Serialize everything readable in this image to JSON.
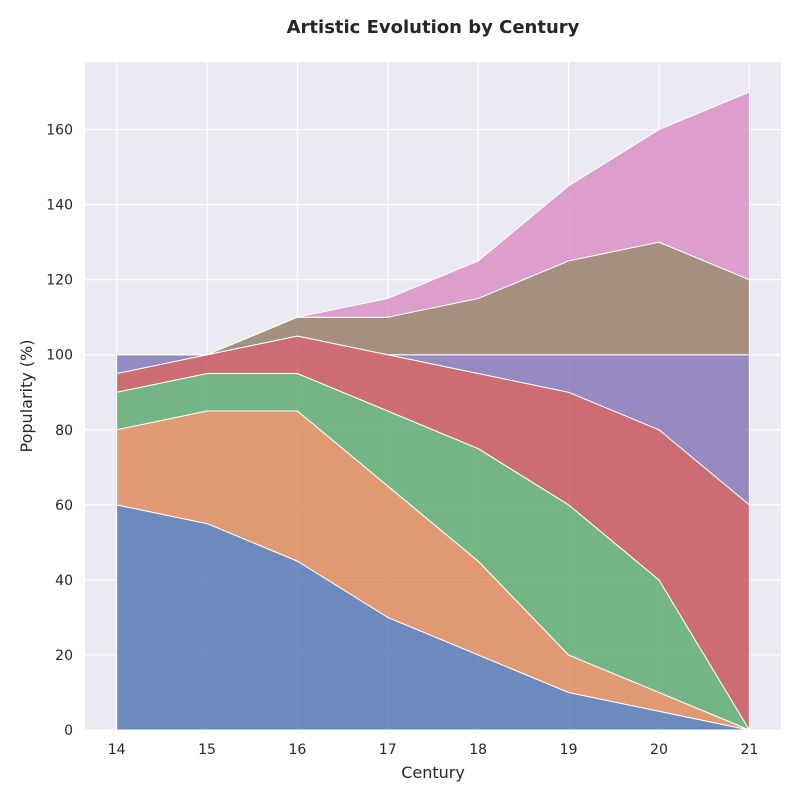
{
  "chart_data": {
    "type": "area",
    "stacked": true,
    "title": "Artistic Evolution by Century",
    "xlabel": "Century",
    "ylabel": "Popularity (%)",
    "x": [
      14,
      15,
      16,
      17,
      18,
      19,
      20,
      21
    ],
    "xlim": [
      13.65,
      21.35
    ],
    "ylim": [
      0,
      178
    ],
    "yticks": [
      0,
      20,
      40,
      60,
      80,
      100,
      120,
      140,
      160
    ],
    "grid": true,
    "legend": "none",
    "series": [
      {
        "color": "#4c72b0",
        "values": [
          60,
          55,
          45,
          30,
          20,
          10,
          5,
          0
        ]
      },
      {
        "color": "#dd8452",
        "values": [
          20,
          30,
          40,
          35,
          25,
          10,
          5,
          0
        ]
      },
      {
        "color": "#55a868",
        "values": [
          10,
          10,
          10,
          20,
          30,
          40,
          30,
          0
        ]
      },
      {
        "color": "#c44e52",
        "values": [
          5,
          5,
          10,
          15,
          20,
          30,
          40,
          60
        ]
      },
      {
        "color": "#8172b3",
        "values": [
          5,
          0,
          0,
          0,
          5,
          10,
          20,
          40
        ]
      },
      {
        "color": "#937860",
        "values": [
          0,
          0,
          5,
          10,
          15,
          25,
          30,
          20
        ]
      },
      {
        "color": "#da8bc3",
        "values": [
          0,
          0,
          0,
          5,
          10,
          20,
          30,
          50
        ]
      }
    ],
    "background_color": "#eaeaf2"
  }
}
